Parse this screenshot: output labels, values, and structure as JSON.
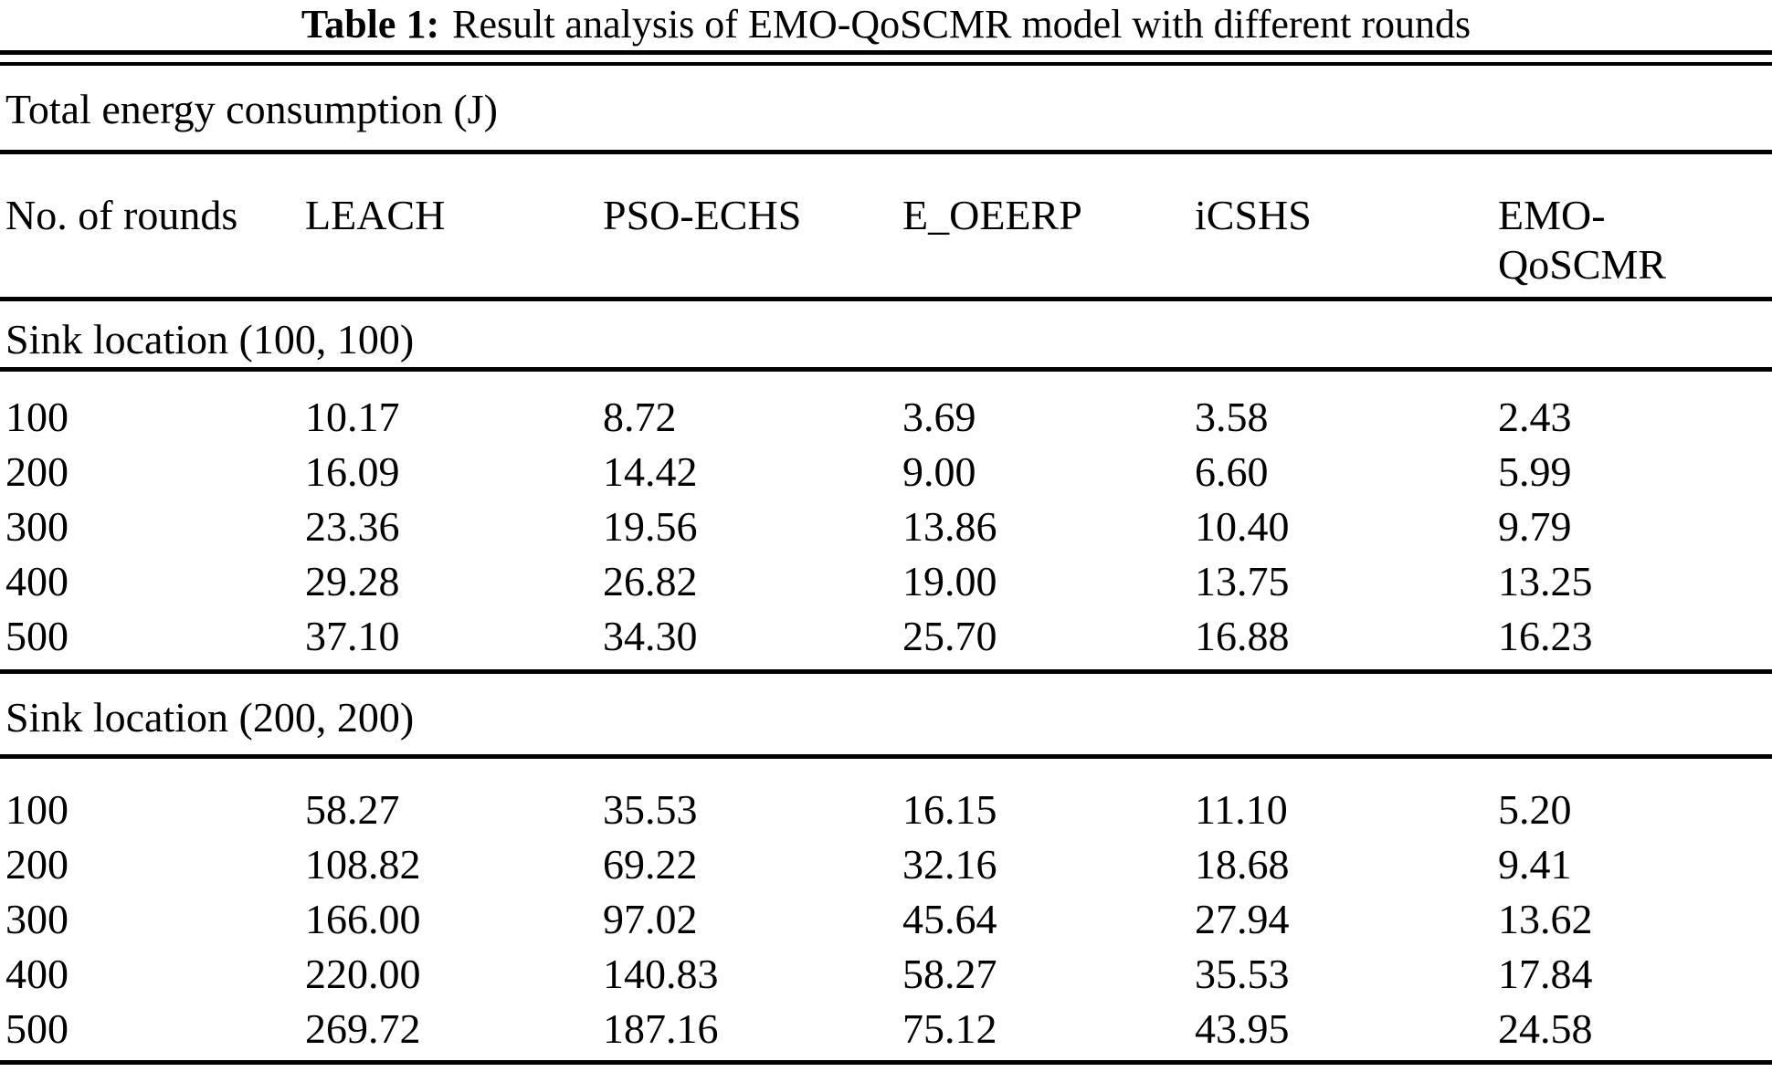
{
  "title": {
    "label": "Table 1:",
    "text": "Result analysis of EMO-QoSCMR model with different rounds"
  },
  "table": {
    "caption": "Total energy consumption (J)",
    "columns": [
      "No. of rounds",
      "LEACH",
      "PSO-ECHS",
      "E_OEERP",
      "iCSHS",
      "EMO-QoSCMR"
    ],
    "sections": [
      {
        "label": "Sink location (100, 100)",
        "rows": [
          {
            "round": "100",
            "values": [
              "10.17",
              "8.72",
              "3.69",
              "3.58",
              "2.43"
            ]
          },
          {
            "round": "200",
            "values": [
              "16.09",
              "14.42",
              "9.00",
              "6.60",
              "5.99"
            ]
          },
          {
            "round": "300",
            "values": [
              "23.36",
              "19.56",
              "13.86",
              "10.40",
              "9.79"
            ]
          },
          {
            "round": "400",
            "values": [
              "29.28",
              "26.82",
              "19.00",
              "13.75",
              "13.25"
            ]
          },
          {
            "round": "500",
            "values": [
              "37.10",
              "34.30",
              "25.70",
              "16.88",
              "16.23"
            ]
          }
        ]
      },
      {
        "label": "Sink location (200, 200)",
        "rows": [
          {
            "round": "100",
            "values": [
              "58.27",
              "35.53",
              "16.15",
              "11.10",
              "5.20"
            ]
          },
          {
            "round": "200",
            "values": [
              "108.82",
              "69.22",
              "32.16",
              "18.68",
              "9.41"
            ]
          },
          {
            "round": "300",
            "values": [
              "166.00",
              "97.02",
              "45.64",
              "27.94",
              "13.62"
            ]
          },
          {
            "round": "400",
            "values": [
              "220.00",
              "140.83",
              "58.27",
              "35.53",
              "17.84"
            ]
          },
          {
            "round": "500",
            "values": [
              "269.72",
              "187.16",
              "75.12",
              "43.95",
              "24.58"
            ]
          }
        ]
      }
    ]
  },
  "colors": {
    "background": "#ffffff",
    "text": "#000000",
    "rule": "#000000"
  }
}
